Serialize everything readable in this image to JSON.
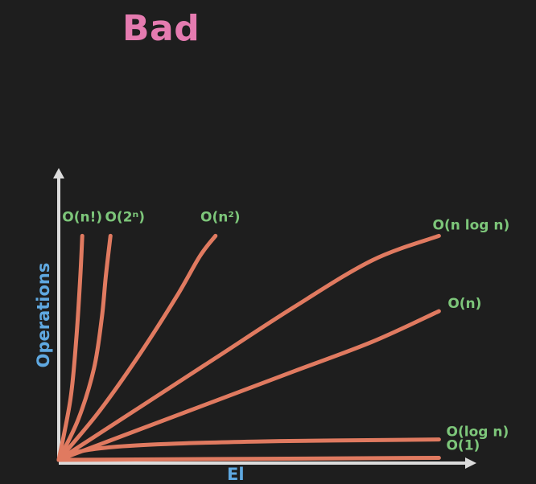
{
  "title": "Bad",
  "colors": {
    "background": "#1e1e1e",
    "title": "#e57bb0",
    "axis_label": "#5fa8e0",
    "axis": "#dcdcdc",
    "curve": "#e07a60",
    "curve_label": "#7dc67a"
  },
  "chart_data": {
    "type": "line",
    "title": "Bad",
    "ylabel": "Operations",
    "xlabel": "El",
    "grid": false,
    "legend": "none",
    "xlim": [
      0,
      10
    ],
    "ylim": [
      0,
      12
    ],
    "series": [
      {
        "name": "O(n!)",
        "points": [
          [
            0,
            0
          ],
          [
            0.3,
            3
          ],
          [
            0.45,
            6
          ],
          [
            0.55,
            9
          ],
          [
            0.6,
            11
          ]
        ]
      },
      {
        "name": "O(2ⁿ)",
        "points": [
          [
            0,
            0
          ],
          [
            0.5,
            2
          ],
          [
            0.9,
            4.5
          ],
          [
            1.1,
            7
          ],
          [
            1.2,
            9
          ],
          [
            1.32,
            11
          ]
        ]
      },
      {
        "name": "O(n²)",
        "points": [
          [
            0,
            0
          ],
          [
            1,
            2.3
          ],
          [
            2,
            5
          ],
          [
            3,
            8
          ],
          [
            3.6,
            10
          ],
          [
            4.0,
            11
          ]
        ]
      },
      {
        "name": "O(n log n)",
        "points": [
          [
            0,
            0
          ],
          [
            2,
            2.5
          ],
          [
            4,
            5
          ],
          [
            6,
            7.5
          ],
          [
            8,
            9.8
          ],
          [
            9.7,
            11
          ]
        ]
      },
      {
        "name": "O(n)",
        "points": [
          [
            0,
            0
          ],
          [
            2,
            1.45
          ],
          [
            4,
            2.9
          ],
          [
            6,
            4.35
          ],
          [
            8,
            5.8
          ],
          [
            9.7,
            7.3
          ]
        ]
      },
      {
        "name": "O(log n)",
        "points": [
          [
            0,
            0
          ],
          [
            0.5,
            0.4
          ],
          [
            1.5,
            0.65
          ],
          [
            3,
            0.8
          ],
          [
            5,
            0.9
          ],
          [
            7,
            0.95
          ],
          [
            9.7,
            1.0
          ]
        ]
      },
      {
        "name": "O(1)",
        "points": [
          [
            0,
            0
          ],
          [
            9.7,
            0.1
          ]
        ]
      }
    ]
  }
}
